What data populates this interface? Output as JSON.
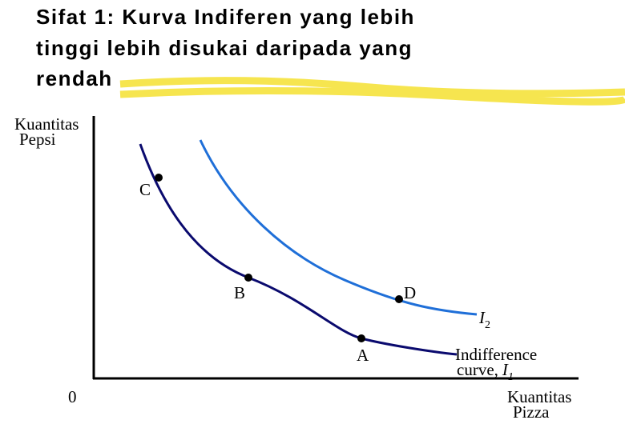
{
  "title": {
    "lines": [
      "Sifat 1: Kurva Indiferen yang lebih",
      "tinggi lebih disukai daripada yang",
      "rendah"
    ]
  },
  "y_axis_label": {
    "lines": [
      "Kuantitas",
      "Pepsi"
    ]
  },
  "x_axis_label": {
    "lines": [
      "Kuantitas",
      "Pizza"
    ]
  },
  "origin": "0",
  "points": {
    "A": "A",
    "B": "B",
    "C": "C",
    "D": "D"
  },
  "curve_i2": {
    "main": "I",
    "sub": "2"
  },
  "curve_i1": {
    "line1": "Indifference",
    "line2": "curve,",
    "main": "I",
    "sub": "1"
  }
}
